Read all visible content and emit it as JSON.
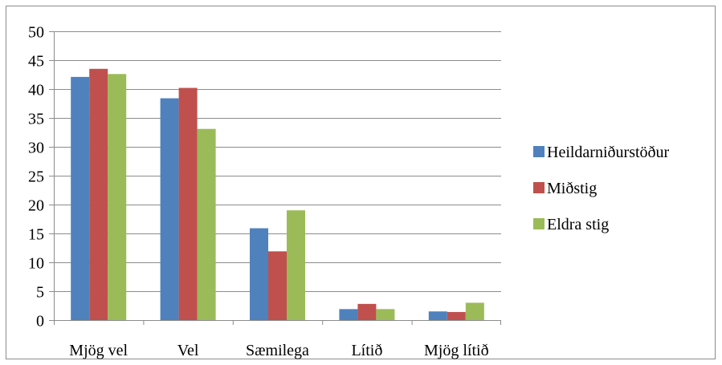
{
  "chart_data": {
    "type": "bar",
    "categories": [
      "Mjög vel",
      "Vel",
      "Sæmilega",
      "Lítið",
      "Mjög lítið"
    ],
    "series": [
      {
        "name": "Heildarniðurstöður",
        "color": "#4f81bd",
        "values": [
          42.1,
          38.4,
          15.9,
          1.9,
          1.5
        ]
      },
      {
        "name": "Miðstig",
        "color": "#c0504d",
        "values": [
          43.5,
          40.2,
          11.9,
          2.8,
          1.4
        ]
      },
      {
        "name": "Eldra stig",
        "color": "#9bbb59",
        "values": [
          42.6,
          33.1,
          19.0,
          1.9,
          3.0
        ]
      }
    ],
    "ylim": [
      0,
      50
    ],
    "yticks": [
      0,
      5,
      10,
      15,
      20,
      25,
      30,
      35,
      40,
      45,
      50
    ],
    "grid": true,
    "legend_position": "right"
  }
}
